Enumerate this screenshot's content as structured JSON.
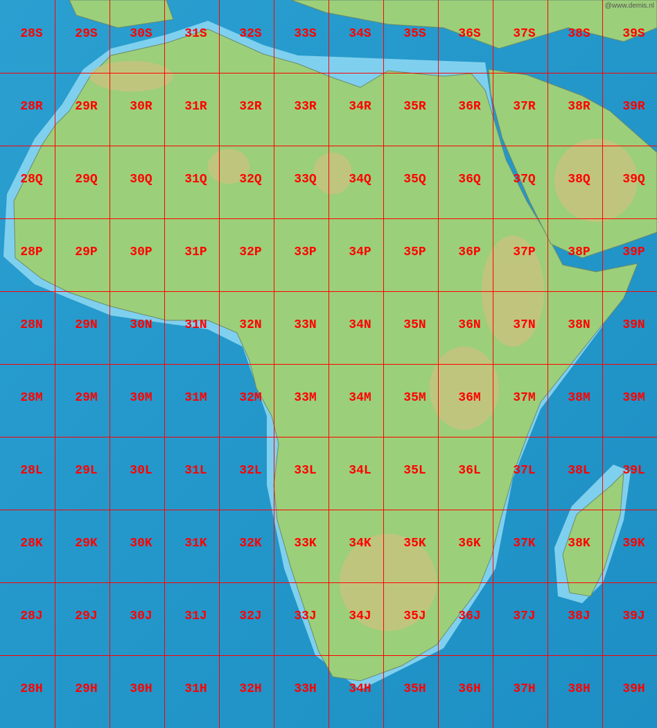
{
  "watermark": "@www.demis.nl",
  "colors": {
    "ocean_deep": "#1a8fc8",
    "ocean_shallow": "#8fd6ef",
    "land": "#9ccf7a",
    "highland": "#c9c97e",
    "grid": "#ff0000",
    "label": "#ff0000"
  },
  "zone_columns": [
    "28",
    "29",
    "30",
    "31",
    "32",
    "33",
    "34",
    "35",
    "36",
    "37",
    "38",
    "39"
  ],
  "band_rows": [
    "S",
    "R",
    "Q",
    "P",
    "N",
    "M",
    "L",
    "K",
    "J",
    "H"
  ]
}
